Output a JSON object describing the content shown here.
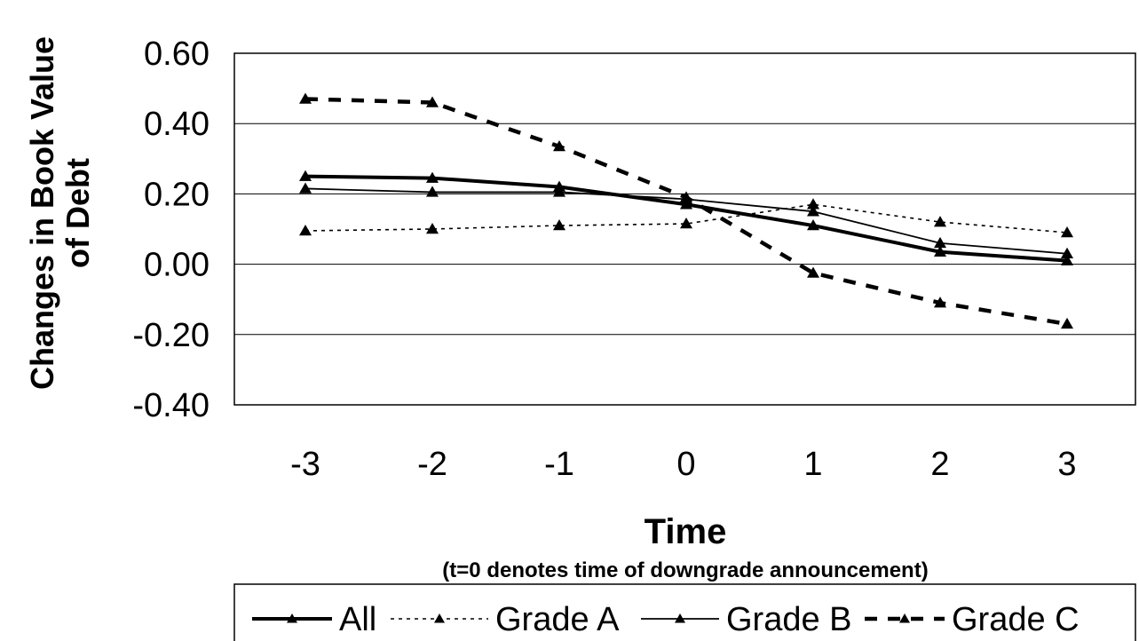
{
  "chart_data": {
    "type": "line",
    "x": [
      -3,
      -2,
      -1,
      0,
      1,
      2,
      3
    ],
    "categories": [
      "-3",
      "-2",
      "-1",
      "0",
      "1",
      "2",
      "3"
    ],
    "ylabel_line1": "Changes in Book Value",
    "ylabel_line2": "of Debt",
    "xlabel": "Time",
    "xlabel_note": "(t=0 denotes time of downgrade announcement)",
    "ylim": [
      -0.4,
      0.6
    ],
    "yticks": [
      "0.60",
      "0.40",
      "0.20",
      "0.00",
      "-0.20",
      "-0.40"
    ],
    "ytick_values": [
      0.6,
      0.4,
      0.2,
      0.0,
      -0.2,
      -0.4
    ],
    "grid": true,
    "legend_position": "bottom",
    "series": [
      {
        "name": "All",
        "values": [
          0.25,
          0.245,
          0.22,
          0.17,
          0.11,
          0.035,
          0.01
        ],
        "style": "thick-solid"
      },
      {
        "name": "Grade A",
        "values": [
          0.095,
          0.1,
          0.11,
          0.115,
          0.17,
          0.12,
          0.09
        ],
        "style": "dotted"
      },
      {
        "name": "Grade B",
        "values": [
          0.215,
          0.205,
          0.205,
          0.185,
          0.15,
          0.06,
          0.03
        ],
        "style": "thin-solid"
      },
      {
        "name": "Grade C",
        "values": [
          0.47,
          0.46,
          0.335,
          0.19,
          -0.025,
          -0.11,
          -0.17
        ],
        "style": "dashed"
      }
    ]
  }
}
